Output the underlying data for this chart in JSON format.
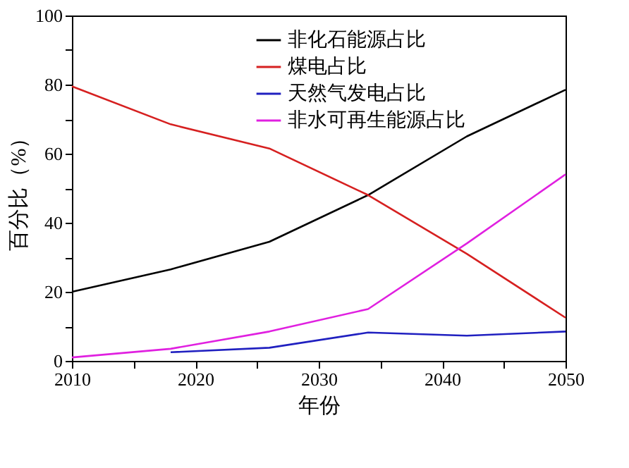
{
  "chart_data": {
    "type": "line",
    "xlabel": "年份",
    "ylabel": "百分比（%）",
    "xlim": [
      2010,
      2050
    ],
    "xticks": [
      2010,
      {
        "value": 2015,
        "label": null
      },
      2020,
      {
        "value": 2025,
        "label": null
      },
      2030,
      {
        "value": 2035,
        "label": null
      },
      2040,
      {
        "value": 2045,
        "label": null
      },
      2050
    ],
    "ylim": [
      0,
      100
    ],
    "yticks": [
      0,
      {
        "value": 10,
        "label": null
      },
      20,
      {
        "value": 30,
        "label": null
      },
      40,
      {
        "value": 50,
        "label": null
      },
      60,
      {
        "value": 70,
        "label": null
      },
      80,
      {
        "value": 90,
        "label": null
      },
      100
    ],
    "grid": false,
    "legend": "top",
    "marker": "none",
    "line_style": "solid",
    "series": [
      {
        "name": "非化石能源占比",
        "color": "#000000",
        "x": [
          2010,
          2018,
          2026,
          2034,
          2042,
          2050
        ],
        "values": [
          20,
          26.5,
          34.5,
          48,
          65,
          78.5
        ]
      },
      {
        "name": "煤电占比",
        "color": "#d62020",
        "x": [
          2010,
          2018,
          2026,
          2034,
          2042,
          2050
        ],
        "values": [
          79.5,
          68.5,
          61.5,
          48,
          31,
          12.5
        ]
      },
      {
        "name": "天然气发电占比",
        "color": "#2020c0",
        "x": [
          2018,
          2026,
          2034,
          2042,
          2050
        ],
        "values": [
          2.5,
          3.8,
          8.2,
          7.3,
          8.5
        ]
      },
      {
        "name": "非水可再生能源占比",
        "color": "#e020e0",
        "x": [
          2010,
          2018,
          2026,
          2034,
          2042,
          2050
        ],
        "values": [
          1,
          3.5,
          8.5,
          15,
          34,
          54
        ]
      }
    ]
  }
}
